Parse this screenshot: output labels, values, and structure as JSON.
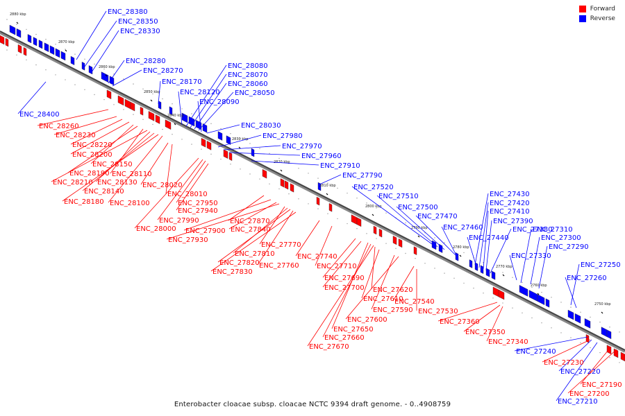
{
  "legend": [
    {
      "label": "Forward",
      "color": "#ff0000"
    },
    {
      "label": "Reverse",
      "color": "#0000ff"
    }
  ],
  "caption": "Enterobacter cloacae subsp. cloacae NCTC 9394 draft genome. - 0..4908759",
  "ticks": [
    "2880 kbp",
    "2870 kbp",
    "2860 kbp",
    "2850 kbp",
    "2840 kbp",
    "2830 kbp",
    "2820 kbp",
    "2810 kbp",
    "2800 kbp",
    "2790 kbp",
    "2780 kbp",
    "2770 kbp",
    "2760 kbp",
    "2750 kbp"
  ],
  "reverse_labels": [
    "ENC_28380",
    "ENC_28350",
    "ENC_28330",
    "ENC_28280",
    "ENC_28270",
    "ENC_28170",
    "ENC_28080",
    "ENC_28070",
    "ENC_28060",
    "ENC_28120",
    "ENC_28050",
    "ENC_28090",
    "ENC_28400",
    "ENC_28030",
    "ENC_27980",
    "ENC_27970",
    "ENC_27960",
    "ENC_27910",
    "ENC_27790",
    "ENC_27520",
    "ENC_27510",
    "ENC_27500",
    "ENC_27470",
    "ENC_27460",
    "ENC_27430",
    "ENC_27420",
    "ENC_27410",
    "ENC_27390",
    "ENC_27380",
    "ENC_27440",
    "ENC_27310",
    "ENC_27300",
    "ENC_27290",
    "ENC_27330",
    "ENC_27250",
    "ENC_27260",
    "ENC_27240",
    "ENC_27220",
    "ENC_27210"
  ],
  "forward_labels": [
    "ENC_28260",
    "ENC_28230",
    "ENC_28220",
    "ENC_28200",
    "ENC_28150",
    "ENC_28190",
    "ENC_28110",
    "ENC_28210",
    "ENC_28130",
    "ENC_28140",
    "ENC_28180",
    "ENC_28100",
    "ENC_28020",
    "ENC_28010",
    "ENC_27950",
    "ENC_27940",
    "ENC_27990",
    "ENC_28000",
    "ENC_27870",
    "ENC_27900",
    "ENC_27840",
    "ENC_27930",
    "ENC_27770",
    "ENC_27810",
    "ENC_27820",
    "ENC_27760",
    "ENC_27830",
    "ENC_27740",
    "ENC_27710",
    "ENC_27690",
    "ENC_27700",
    "ENC_27620",
    "ENC_27610",
    "ENC_27590",
    "ENC_27600",
    "ENC_27540",
    "ENC_27530",
    "ENC_27650",
    "ENC_27660",
    "ENC_27670",
    "ENC_27360",
    "ENC_27350",
    "ENC_27340",
    "ENC_27230",
    "ENC_27190",
    "ENC_27200"
  ]
}
